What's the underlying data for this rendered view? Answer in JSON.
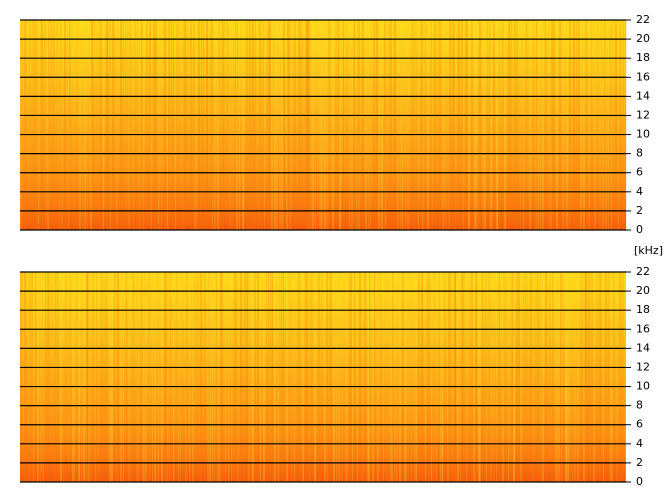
{
  "unit_label": "[kHz]",
  "panels": [
    {
      "ylim": [
        0,
        22
      ],
      "yticks": [
        0,
        2,
        4,
        6,
        8,
        10,
        12,
        14,
        16,
        18,
        20,
        22
      ]
    },
    {
      "ylim": [
        0,
        22
      ],
      "yticks": [
        0,
        2,
        4,
        6,
        8,
        10,
        12,
        14,
        16,
        18,
        20,
        22
      ]
    }
  ]
}
